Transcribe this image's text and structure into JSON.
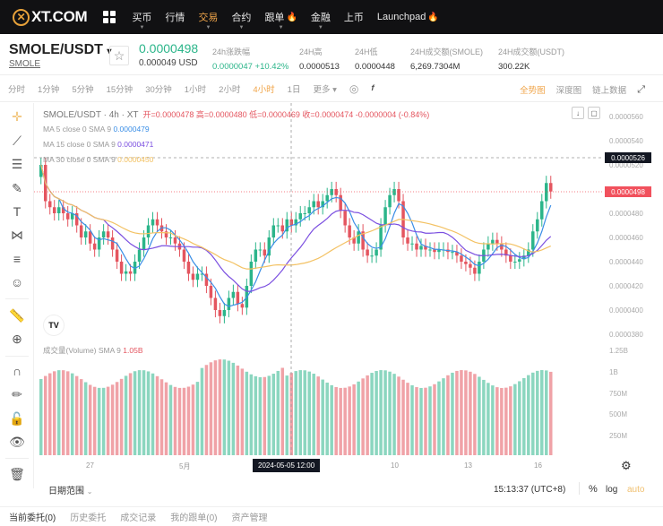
{
  "nav": {
    "logo_text": "XT.COM",
    "items": [
      {
        "label": "买币",
        "caret": true,
        "active": false,
        "hot": false
      },
      {
        "label": "行情",
        "caret": false,
        "active": false,
        "hot": false
      },
      {
        "label": "交易",
        "caret": true,
        "active": true,
        "hot": false
      },
      {
        "label": "合约",
        "caret": true,
        "active": false,
        "hot": false
      },
      {
        "label": "跟单",
        "caret": true,
        "active": false,
        "hot": true
      },
      {
        "label": "金融",
        "caret": true,
        "active": false,
        "hot": false
      },
      {
        "label": "上币",
        "caret": false,
        "active": false,
        "hot": false
      },
      {
        "label": "Launchpad",
        "caret": false,
        "active": false,
        "hot": true
      }
    ]
  },
  "ticker": {
    "pair": "SMOLE/USDT",
    "pair_sub": "SMOLE",
    "last_price": "0.0000498",
    "last_price_usd": "0.000049 USD",
    "stats": [
      {
        "label": "24h涨跌幅",
        "value": "0.0000047 +10.42%",
        "color": "#2bb58a"
      },
      {
        "label": "24H高",
        "value": "0.0000513"
      },
      {
        "label": "24H低",
        "value": "0.0000448"
      },
      {
        "label": "24H成交额(SMOLE)",
        "value": "6,269.7304M"
      },
      {
        "label": "24H成交额(USDT)",
        "value": "300.22K"
      }
    ]
  },
  "toolbar": {
    "timeframes": [
      "分时",
      "1分钟",
      "5分钟",
      "15分钟",
      "30分钟",
      "1小时",
      "2小时",
      "4小时",
      "1日",
      "更多 ▾"
    ],
    "active_timeframe": "4小时",
    "right_tabs": [
      "全势图",
      "深度图",
      "链上数据"
    ],
    "active_right_tab": "全势图"
  },
  "chart_legend": {
    "title": "SMOLE/USDT · 4h · XT",
    "ohlc": "开=0.0000478 高=0.0000480 低=0.0000469 收=0.0000474 -0.0000004 (-0.84%)",
    "ma5_label": "MA 5 close 0 SMA 9",
    "ma5_value": "0.0000479",
    "ma15_label": "MA 15 close 0 SMA 9",
    "ma15_value": "0.0000471",
    "ma30_label": "MA 30 close 0 SMA 9",
    "ma30_value": "0.0000450",
    "volume_label": "成交量(Volume) SMA 9",
    "volume_value": "1.05B"
  },
  "y_axis": {
    "price_labels": [
      "0.0000560",
      "0.0000540",
      "0.0000520",
      "0.0000500",
      "0.0000480",
      "0.0000460",
      "0.0000440",
      "0.0000420",
      "0.0000400",
      "0.0000380"
    ],
    "crosshair_price": "0.0000526",
    "current_price": "0.0000498",
    "volume_labels": [
      "1.25B",
      "1B",
      "750M",
      "500M",
      "250M"
    ]
  },
  "x_axis": {
    "labels": [
      "27",
      "5月",
      "10",
      "13",
      "16"
    ],
    "crosshair_time": "2024-05-05  12:00"
  },
  "footer": {
    "date_range": "日期范围",
    "clock": "15:13:37 (UTC+8)",
    "pct": "%",
    "log": "log",
    "auto": "auto"
  },
  "bottom_tabs": [
    "当前委托(0)",
    "历史委托",
    "成交记录",
    "我的跟单(0)",
    "资产管理"
  ],
  "colors": {
    "up": "#2bb58a",
    "down": "#e4555f",
    "accent": "#f0a54a",
    "ma5": "#3a8ee6",
    "ma15": "#7b4fe0",
    "ma30": "#f3c264"
  }
}
